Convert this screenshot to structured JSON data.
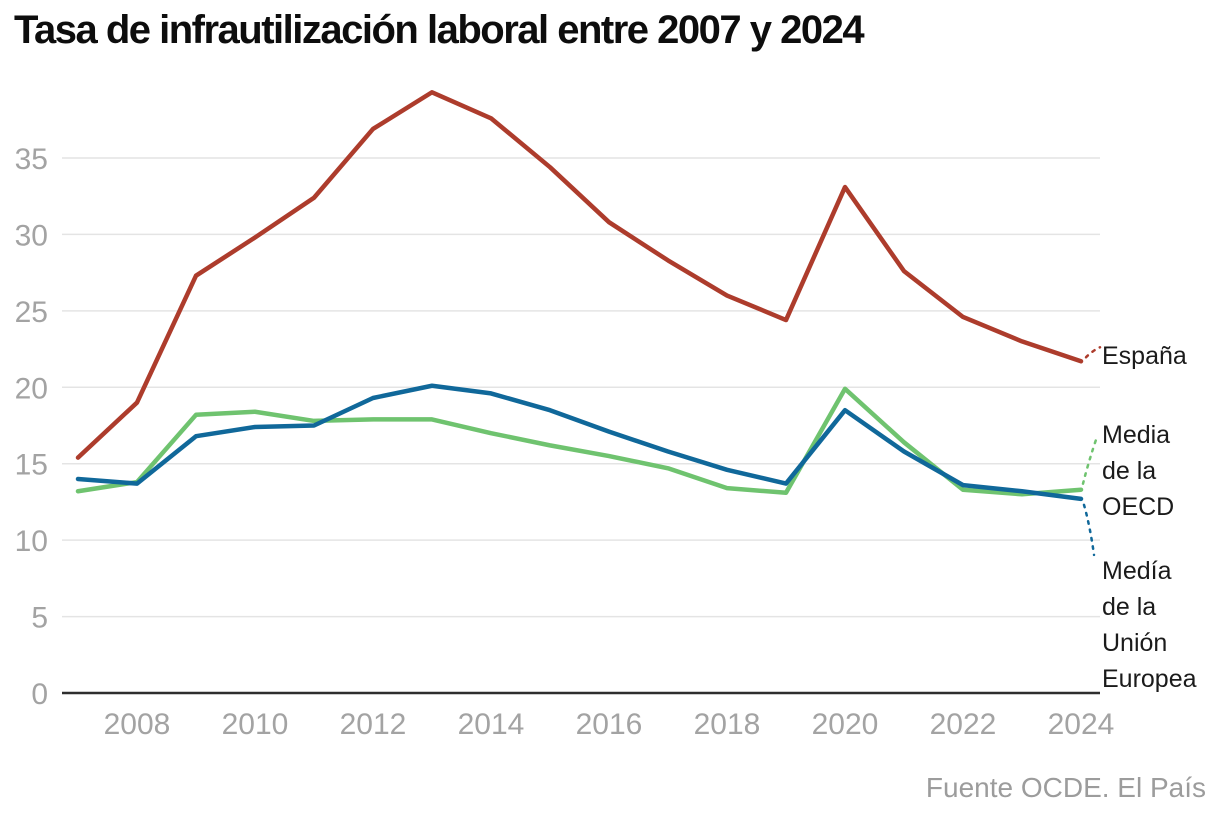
{
  "title": "Tasa de infrautilización laboral entre 2007 y 2024",
  "source": "Fuente OCDE. El País",
  "colors": {
    "espana": "#ad3c2c",
    "media_oecd": "#6fc36f",
    "media_ue": "#10689a",
    "grid": "#e4e4e4",
    "zero_axis": "#2e2e2e",
    "axis_text": "#a3a3a3",
    "annotation_text": "#1b1b1b",
    "title_text": "#0d0d0d",
    "source_text": "#9c9c9c"
  },
  "chart_data": {
    "type": "line",
    "title": "Tasa de infrautilización laboral entre 2007 y 2024",
    "xlabel": "",
    "ylabel": "",
    "x": [
      2007,
      2008,
      2009,
      2010,
      2011,
      2012,
      2013,
      2014,
      2015,
      2016,
      2017,
      2018,
      2019,
      2020,
      2021,
      2022,
      2023,
      2024
    ],
    "x_ticks": [
      2008,
      2010,
      2012,
      2014,
      2016,
      2018,
      2020,
      2022,
      2024
    ],
    "y_ticks": [
      0,
      5,
      10,
      15,
      20,
      25,
      30,
      35
    ],
    "ylim": [
      0,
      40
    ],
    "grid": "horizontal",
    "legend_position": "right-annotations",
    "series": [
      {
        "name": "España",
        "slug": "espana",
        "color": "#ad3c2c",
        "label_text": "España",
        "values": [
          15.4,
          19.0,
          27.3,
          29.8,
          32.4,
          36.9,
          39.3,
          37.6,
          34.4,
          30.8,
          28.3,
          26.0,
          24.4,
          33.1,
          27.6,
          24.6,
          23.0,
          21.7
        ]
      },
      {
        "name": "Media de la OECD",
        "slug": "media-oecd",
        "color": "#6fc36f",
        "label_text": "Media\nde la\nOECD",
        "values": [
          13.2,
          13.8,
          18.2,
          18.4,
          17.8,
          17.9,
          17.9,
          17.0,
          16.2,
          15.5,
          14.7,
          13.4,
          13.1,
          19.9,
          16.4,
          13.3,
          13.0,
          13.3
        ]
      },
      {
        "name": "Medía de la Unión Europea",
        "slug": "media-ue",
        "color": "#10689a",
        "label_text": "Medía\nde la\nUnión\nEuropea",
        "values": [
          14.0,
          13.7,
          16.8,
          17.4,
          17.5,
          19.3,
          20.1,
          19.6,
          18.5,
          17.1,
          15.8,
          14.6,
          13.7,
          18.5,
          15.8,
          13.6,
          13.2,
          12.7
        ]
      }
    ]
  }
}
